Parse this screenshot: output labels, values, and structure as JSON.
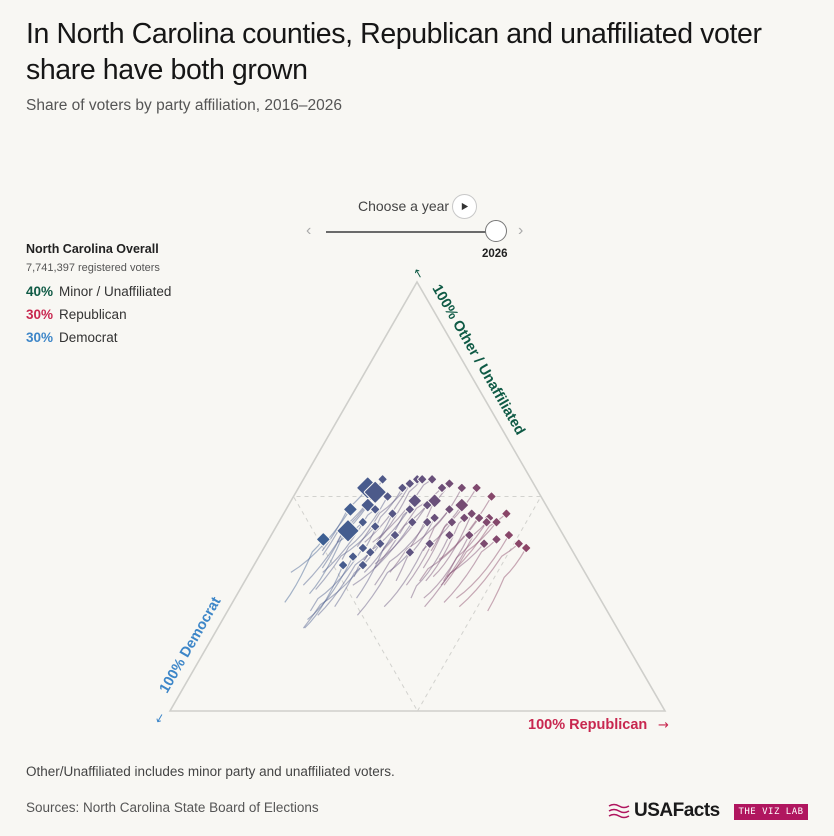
{
  "header": {
    "title": "In North Carolina counties, Republican and unaffiliated voter share have both grown",
    "subtitle": "Share of voters by party affiliation, 2016–2026"
  },
  "controls": {
    "year_label": "Choose a year",
    "selected_year": "2026",
    "year_min": 2016,
    "year_max": 2026
  },
  "legend": {
    "title": "North Carolina Overall",
    "registered": "7,741,397 registered voters",
    "items": [
      {
        "pct": "40%",
        "label": "Minor / Unaffiliated",
        "color": "#0f5a45"
      },
      {
        "pct": "30%",
        "label": "Republican",
        "color": "#c8274f"
      },
      {
        "pct": "30%",
        "label": "Democrat",
        "color": "#3d86c8"
      }
    ]
  },
  "axes": {
    "other_label": "100% Other / Unaffiliated",
    "other_color": "#0f5a45",
    "democrat_label": "100% Democrat",
    "democrat_color": "#3d86c8",
    "republican_label": "100% Republican",
    "republican_color": "#c8274f"
  },
  "footer": {
    "note": "Other/Unaffiliated includes minor party and unaffiliated voters.",
    "sources": "Sources: North Carolina State Board of Elections",
    "logo": "USAFacts",
    "badge": "THE VIZ LAB"
  },
  "chart_data": {
    "type": "ternary-scatter",
    "year": 2026,
    "components": [
      "Democrat",
      "Republican",
      "Other/Unaffiliated"
    ],
    "gridlines": "midpoint (50%)",
    "overall": {
      "democrat": 0.3,
      "republican": 0.3,
      "other": 0.4
    },
    "color_scale": {
      "democrat_leaning": "#3d5f93",
      "republican_leaning": "#8c4567"
    },
    "counties_sample": [
      {
        "democrat": 0.43,
        "republican": 0.15,
        "other": 0.42,
        "size": "large"
      },
      {
        "democrat": 0.34,
        "republican": 0.14,
        "other": 0.52,
        "size": "large"
      },
      {
        "democrat": 0.33,
        "republican": 0.16,
        "other": 0.51,
        "size": "large"
      },
      {
        "democrat": 0.4,
        "republican": 0.13,
        "other": 0.47,
        "size": "medium"
      },
      {
        "democrat": 0.49,
        "republican": 0.11,
        "other": 0.4,
        "size": "medium"
      },
      {
        "democrat": 0.36,
        "republican": 0.16,
        "other": 0.48,
        "size": "medium"
      },
      {
        "democrat": 0.26,
        "republican": 0.25,
        "other": 0.49,
        "size": "medium"
      },
      {
        "democrat": 0.22,
        "republican": 0.29,
        "other": 0.49,
        "size": "medium"
      },
      {
        "democrat": 0.17,
        "republican": 0.35,
        "other": 0.48,
        "size": "medium"
      },
      {
        "democrat": 0.13,
        "republican": 0.42,
        "other": 0.45,
        "size": "small"
      },
      {
        "democrat": 0.11,
        "republican": 0.48,
        "other": 0.41,
        "size": "small"
      },
      {
        "democrat": 0.1,
        "republican": 0.51,
        "other": 0.39,
        "size": "small"
      },
      {
        "democrat": 0.09,
        "republican": 0.53,
        "other": 0.38,
        "size": "small"
      },
      {
        "democrat": 0.3,
        "republican": 0.16,
        "other": 0.54,
        "size": "small"
      },
      {
        "democrat": 0.23,
        "republican": 0.23,
        "other": 0.54,
        "size": "small"
      },
      {
        "democrat": 0.19,
        "republican": 0.29,
        "other": 0.52,
        "size": "small"
      },
      {
        "democrat": 0.15,
        "republican": 0.33,
        "other": 0.52,
        "size": "small"
      },
      {
        "democrat": 0.45,
        "republican": 0.19,
        "other": 0.36,
        "size": "small"
      },
      {
        "democrat": 0.41,
        "republican": 0.22,
        "other": 0.37,
        "size": "small"
      },
      {
        "democrat": 0.37,
        "republican": 0.2,
        "other": 0.43,
        "size": "small"
      },
      {
        "democrat": 0.32,
        "republican": 0.22,
        "other": 0.46,
        "size": "small"
      },
      {
        "democrat": 0.28,
        "republican": 0.25,
        "other": 0.47,
        "size": "small"
      },
      {
        "democrat": 0.24,
        "republican": 0.28,
        "other": 0.48,
        "size": "small"
      },
      {
        "democrat": 0.2,
        "republican": 0.33,
        "other": 0.47,
        "size": "small"
      },
      {
        "democrat": 0.16,
        "republican": 0.38,
        "other": 0.46,
        "size": "small"
      },
      {
        "democrat": 0.14,
        "republican": 0.42,
        "other": 0.44,
        "size": "small"
      },
      {
        "democrat": 0.12,
        "republican": 0.44,
        "other": 0.44,
        "size": "small"
      },
      {
        "democrat": 0.15,
        "republican": 0.4,
        "other": 0.45,
        "size": "small"
      },
      {
        "democrat": 0.18,
        "republican": 0.37,
        "other": 0.45,
        "size": "small"
      },
      {
        "democrat": 0.21,
        "republican": 0.35,
        "other": 0.44,
        "size": "small"
      },
      {
        "democrat": 0.26,
        "republican": 0.3,
        "other": 0.44,
        "size": "small"
      },
      {
        "democrat": 0.29,
        "republican": 0.27,
        "other": 0.44,
        "size": "small"
      },
      {
        "democrat": 0.34,
        "republican": 0.25,
        "other": 0.41,
        "size": "small"
      },
      {
        "democrat": 0.38,
        "republican": 0.23,
        "other": 0.39,
        "size": "small"
      },
      {
        "democrat": 0.42,
        "republican": 0.2,
        "other": 0.38,
        "size": "small"
      },
      {
        "democrat": 0.2,
        "republican": 0.26,
        "other": 0.54,
        "size": "small"
      },
      {
        "democrat": 0.17,
        "republican": 0.3,
        "other": 0.53,
        "size": "small"
      },
      {
        "democrat": 0.12,
        "republican": 0.36,
        "other": 0.52,
        "size": "small"
      },
      {
        "democrat": 0.1,
        "republican": 0.4,
        "other": 0.5,
        "size": "small"
      },
      {
        "democrat": 0.09,
        "republican": 0.45,
        "other": 0.46,
        "size": "small"
      },
      {
        "democrat": 0.27,
        "republican": 0.21,
        "other": 0.52,
        "size": "small"
      },
      {
        "democrat": 0.31,
        "republican": 0.19,
        "other": 0.5,
        "size": "small"
      },
      {
        "democrat": 0.35,
        "republican": 0.18,
        "other": 0.47,
        "size": "small"
      },
      {
        "democrat": 0.39,
        "republican": 0.17,
        "other": 0.44,
        "size": "small"
      },
      {
        "democrat": 0.24,
        "republican": 0.31,
        "other": 0.45,
        "size": "small"
      },
      {
        "democrat": 0.19,
        "republican": 0.4,
        "other": 0.41,
        "size": "small"
      },
      {
        "democrat": 0.14,
        "republican": 0.46,
        "other": 0.4,
        "size": "small"
      },
      {
        "democrat": 0.17,
        "republican": 0.44,
        "other": 0.39,
        "size": "small"
      },
      {
        "democrat": 0.23,
        "republican": 0.36,
        "other": 0.41,
        "size": "small"
      },
      {
        "democrat": 0.28,
        "republican": 0.33,
        "other": 0.39,
        "size": "small"
      },
      {
        "democrat": 0.33,
        "republican": 0.3,
        "other": 0.37,
        "size": "small"
      },
      {
        "democrat": 0.44,
        "republican": 0.22,
        "other": 0.34,
        "size": "small"
      },
      {
        "democrat": 0.48,
        "republican": 0.18,
        "other": 0.34,
        "size": "small"
      },
      {
        "democrat": 0.22,
        "republican": 0.24,
        "other": 0.54,
        "size": "small"
      },
      {
        "democrat": 0.25,
        "republican": 0.22,
        "other": 0.53,
        "size": "small"
      }
    ]
  }
}
